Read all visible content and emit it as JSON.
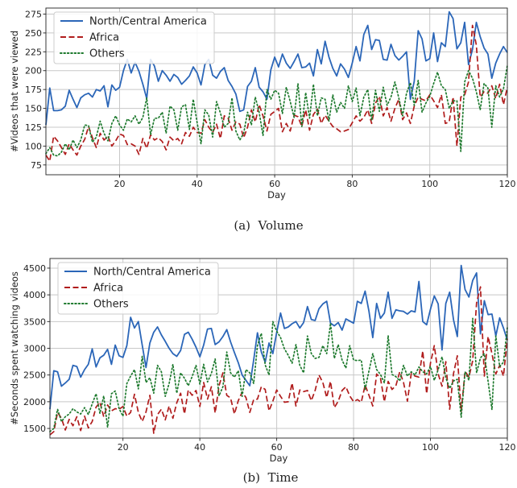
{
  "chart_data": [
    {
      "type": "line",
      "caption": "(a)  Volume",
      "xlabel": "Day",
      "ylabel": "#Videos that were viewed",
      "xlim": [
        1,
        120
      ],
      "ylim": [
        62,
        283
      ],
      "xticks": [
        20,
        40,
        60,
        80,
        100,
        120
      ],
      "yticks": [
        75,
        100,
        125,
        150,
        175,
        200,
        225,
        250,
        275
      ],
      "grid": true,
      "legend": "top-left",
      "series": [
        {
          "name": "North/Central America",
          "color": "#2b66b8",
          "dash": "solid",
          "values": [
            128,
            177,
            147,
            147,
            148,
            153,
            174,
            162,
            151,
            164,
            168,
            170,
            165,
            175,
            173,
            180,
            152,
            181,
            174,
            178,
            200,
            215,
            197,
            211,
            199,
            182,
            163,
            215,
            206,
            186,
            200,
            194,
            186,
            195,
            191,
            182,
            187,
            193,
            205,
            197,
            181,
            208,
            215,
            194,
            190,
            199,
            204,
            187,
            179,
            169,
            146,
            148,
            179,
            186,
            204,
            178,
            172,
            162,
            201,
            218,
            205,
            222,
            210,
            203,
            212,
            222,
            204,
            205,
            210,
            193,
            228,
            209,
            239,
            218,
            203,
            193,
            209,
            202,
            191,
            210,
            232,
            213,
            248,
            260,
            228,
            241,
            240,
            215,
            214,
            235,
            220,
            214,
            219,
            225,
            162,
            186,
            253,
            242,
            213,
            216,
            250,
            212,
            237,
            232,
            278,
            269,
            229,
            237,
            264,
            208,
            228,
            264,
            245,
            230,
            222,
            190,
            210,
            222,
            232,
            224
          ]
        },
        {
          "name": "Africa",
          "color": "#b01c1c",
          "dash": "dashed",
          "values": [
            88,
            80,
            113,
            107,
            98,
            89,
            103,
            95,
            88,
            100,
            109,
            126,
            111,
            98,
            117,
            108,
            113,
            100,
            107,
            116,
            114,
            102,
            103,
            100,
            89,
            110,
            97,
            115,
            108,
            111,
            106,
            95,
            112,
            107,
            110,
            103,
            118,
            113,
            125,
            118,
            117,
            135,
            125,
            118,
            129,
            110,
            140,
            137,
            121,
            132,
            129,
            111,
            125,
            148,
            132,
            155,
            140,
            120,
            142,
            146,
            150,
            119,
            130,
            120,
            141,
            139,
            126,
            148,
            121,
            142,
            149,
            130,
            141,
            133,
            126,
            123,
            119,
            120,
            122,
            131,
            140,
            133,
            138,
            148,
            130,
            157,
            166,
            140,
            151,
            133,
            150,
            162,
            135,
            144,
            130,
            153,
            165,
            162,
            160,
            168,
            160,
            151,
            168,
            130,
            132,
            165,
            100,
            165,
            168,
            185,
            260,
            234,
            165,
            172,
            170,
            180,
            163,
            182,
            155,
            178
          ]
        },
        {
          "name": "Others",
          "color": "#1e7a2e",
          "dash": "dotted",
          "values": [
            90,
            98,
            88,
            87,
            92,
            103,
            95,
            108,
            98,
            108,
            128,
            127,
            105,
            112,
            133,
            117,
            107,
            130,
            140,
            128,
            121,
            136,
            132,
            140,
            129,
            138,
            164,
            115,
            137,
            137,
            145,
            117,
            153,
            148,
            121,
            152,
            155,
            122,
            162,
            131,
            103,
            148,
            141,
            112,
            159,
            144,
            125,
            130,
            164,
            120,
            108,
            117,
            145,
            128,
            165,
            145,
            114,
            175,
            162,
            174,
            170,
            143,
            178,
            159,
            138,
            183,
            126,
            171,
            137,
            182,
            140,
            164,
            162,
            133,
            168,
            145,
            158,
            150,
            180,
            159,
            177,
            140,
            165,
            175,
            134,
            174,
            146,
            178,
            154,
            165,
            185,
            164,
            140,
            170,
            184,
            154,
            187,
            145,
            157,
            166,
            183,
            198,
            180,
            175,
            150,
            160,
            160,
            93,
            185,
            200,
            190,
            172,
            148,
            183,
            177,
            125,
            180,
            165,
            176,
            207
          ]
        }
      ]
    },
    {
      "type": "line",
      "caption": "(b)  Time",
      "xlabel": "Day",
      "ylabel": "#Seconds spent watching videos",
      "xlim": [
        1,
        120
      ],
      "ylim": [
        1320,
        4680
      ],
      "xticks": [
        20,
        40,
        60,
        80,
        100,
        120
      ],
      "yticks": [
        1500,
        2000,
        2500,
        3000,
        3500,
        4000,
        4500
      ],
      "grid": true,
      "legend": "top-left",
      "series": [
        {
          "name": "North/Central America",
          "color": "#2b66b8",
          "dash": "solid",
          "values": [
            1860,
            2580,
            2560,
            2290,
            2350,
            2420,
            2680,
            2660,
            2460,
            2600,
            2700,
            2990,
            2650,
            2820,
            2870,
            2980,
            2700,
            3060,
            2860,
            2830,
            3050,
            3580,
            3380,
            3500,
            3060,
            2640,
            3100,
            3300,
            3400,
            3250,
            3130,
            3000,
            2900,
            2850,
            2960,
            3260,
            3300,
            3170,
            3020,
            2840,
            3060,
            3360,
            3370,
            3070,
            3120,
            3220,
            3350,
            3120,
            2920,
            2730,
            2500,
            2400,
            2300,
            2780,
            3290,
            2930,
            2740,
            3100,
            2900,
            3300,
            3660,
            3370,
            3400,
            3460,
            3500,
            3380,
            3480,
            3780,
            3540,
            3520,
            3740,
            3830,
            3880,
            3470,
            3420,
            3480,
            3340,
            3550,
            3510,
            3470,
            3880,
            3840,
            4070,
            3690,
            3200,
            3840,
            3560,
            3660,
            4050,
            3560,
            3720,
            3700,
            3690,
            3640,
            3700,
            3680,
            4250,
            3500,
            3440,
            3730,
            3980,
            3830,
            2970,
            3840,
            4050,
            3530,
            3220,
            4550,
            4100,
            3960,
            4270,
            4410,
            3270,
            3890,
            3630,
            3640,
            3230,
            3570,
            3380,
            3150
          ]
        },
        {
          "name": "Africa",
          "color": "#b01c1c",
          "dash": "dashed",
          "values": [
            1380,
            1440,
            1800,
            1690,
            1470,
            1670,
            1550,
            1720,
            1460,
            1730,
            1510,
            1630,
            1900,
            1990,
            1720,
            1940,
            1830,
            1870,
            1860,
            1910,
            1730,
            1800,
            2140,
            1800,
            1630,
            1810,
            2120,
            1410,
            1760,
            1860,
            1660,
            1920,
            1690,
            1980,
            2160,
            1770,
            2220,
            2120,
            2210,
            1910,
            2360,
            2050,
            2280,
            1790,
            2300,
            2540,
            2120,
            2070,
            1770,
            2020,
            2180,
            2080,
            1800,
            2040,
            2050,
            2280,
            2230,
            1830,
            2010,
            2220,
            2100,
            1990,
            2000,
            2350,
            1920,
            2220,
            2190,
            2210,
            2020,
            2210,
            2500,
            2360,
            2080,
            2380,
            1890,
            2010,
            2210,
            2280,
            2110,
            2000,
            2040,
            1990,
            2310,
            2120,
            1920,
            2520,
            2440,
            2000,
            2380,
            2230,
            2300,
            2560,
            2360,
            2010,
            2530,
            2480,
            2460,
            2950,
            2150,
            2720,
            3050,
            2520,
            2290,
            2750,
            1860,
            2530,
            2860,
            1820,
            2570,
            2460,
            2770,
            3850,
            4150,
            2480,
            3220,
            2900,
            2520,
            2680,
            2480,
            3180
          ]
        },
        {
          "name": "Others",
          "color": "#1e7a2e",
          "dash": "dotted",
          "values": [
            1440,
            1500,
            1860,
            1630,
            1720,
            1770,
            1870,
            1810,
            1770,
            1890,
            1760,
            1960,
            2150,
            1780,
            2110,
            1520,
            2150,
            2200,
            1870,
            1730,
            2340,
            2480,
            2600,
            2240,
            2850,
            2360,
            2450,
            2160,
            2680,
            2560,
            2100,
            2340,
            2700,
            2160,
            2540,
            2440,
            2300,
            2470,
            2680,
            2330,
            2700,
            2370,
            2530,
            2800,
            2110,
            2280,
            2930,
            2540,
            2460,
            2580,
            2100,
            2600,
            2540,
            2340,
            3050,
            3280,
            2690,
            2500,
            3500,
            3320,
            3200,
            2990,
            2870,
            2720,
            3070,
            2680,
            2540,
            3230,
            2900,
            2810,
            2830,
            3050,
            2900,
            3470,
            2810,
            3070,
            2780,
            2630,
            3050,
            2780,
            2770,
            2780,
            2230,
            2580,
            2900,
            2600,
            2510,
            2350,
            3240,
            2510,
            2470,
            2390,
            2680,
            2480,
            2560,
            2500,
            2650,
            2560,
            2520,
            2660,
            2400,
            2600,
            2840,
            2450,
            2250,
            2390,
            2420,
            1710,
            2560,
            2400,
            3560,
            2540,
            2820,
            2900,
            2380,
            1850,
            3230,
            2660,
            2740,
            3390
          ]
        }
      ]
    }
  ]
}
